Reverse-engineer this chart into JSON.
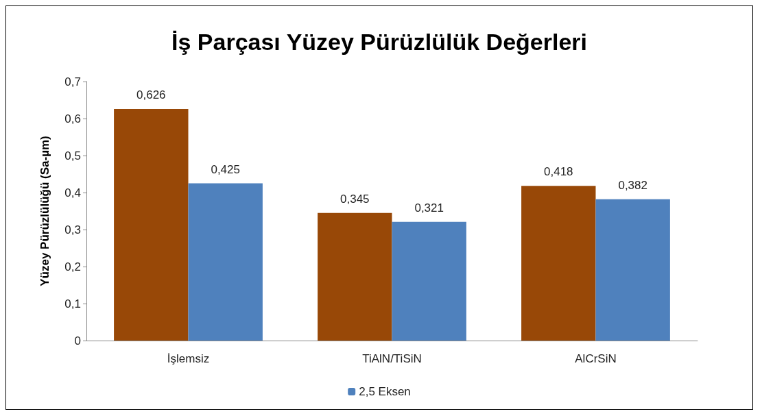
{
  "chart_data": {
    "type": "bar",
    "title": "İş Parçası Yüzey Pürüzlülük Değerleri",
    "ylabel": "Yüzey Pürüzlülüğü (Sa-µm)",
    "categories": [
      "İşlemsiz",
      "TiAlN/TiSiN",
      "AlCrSiN"
    ],
    "series": [
      {
        "color": "#984807",
        "values": [
          0.626,
          0.345,
          0.418
        ],
        "value_labels": [
          "0,626",
          "0,345",
          "0,418"
        ]
      },
      {
        "name": "2,5 Eksen",
        "color": "#4f81bd",
        "values": [
          0.425,
          0.321,
          0.382
        ],
        "value_labels": [
          "0,425",
          "0,321",
          "0,382"
        ]
      }
    ],
    "ylim": [
      0,
      0.7
    ],
    "yticks": [
      0,
      {
        "value": 0.1,
        "label": "0,1"
      },
      {
        "value": 0.2,
        "label": "0,2"
      },
      {
        "value": 0.3,
        "label": "0,3"
      },
      {
        "value": 0.4,
        "label": "0,4"
      },
      {
        "value": 0.5,
        "label": "0,5"
      },
      {
        "value": 0.6,
        "label": "0,6"
      },
      {
        "value": 0.7,
        "label": "0,7"
      }
    ],
    "grid": false,
    "legend": "bottom"
  }
}
